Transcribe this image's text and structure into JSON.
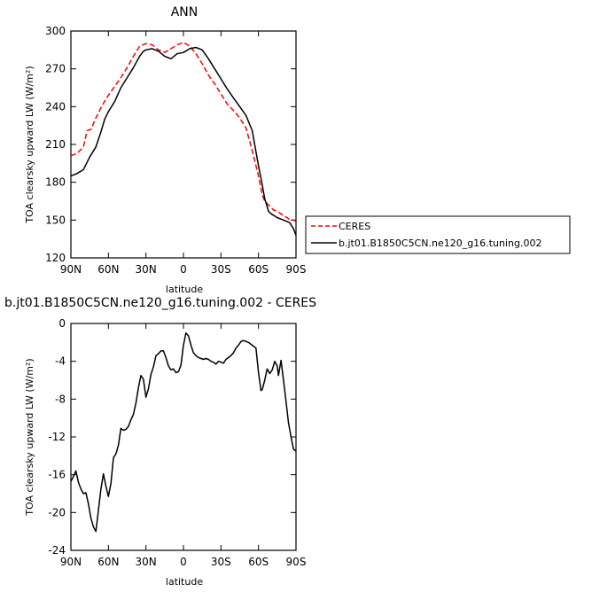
{
  "chart_data": [
    {
      "type": "line",
      "title": "ANN",
      "xlabel": "latitude",
      "ylabel": "TOA clearsky upward LW (W/m²)",
      "xlim": [
        90,
        -90
      ],
      "ylim": [
        120,
        300
      ],
      "xticks": [
        {
          "value": 90,
          "label": "90N"
        },
        {
          "value": 60,
          "label": "60N"
        },
        {
          "value": 30,
          "label": "30N"
        },
        {
          "value": 0,
          "label": "0"
        },
        {
          "value": -30,
          "label": "30S"
        },
        {
          "value": -60,
          "label": "60S"
        },
        {
          "value": -90,
          "label": "90S"
        }
      ],
      "yticks": [
        120,
        150,
        180,
        210,
        240,
        270,
        300
      ],
      "legend_position": "right-bottom, outside plot",
      "series": [
        {
          "name": "CERES",
          "color": "#ff0000",
          "dash": true,
          "x": [
            90,
            85,
            80,
            77,
            74,
            70,
            65,
            60,
            55,
            50,
            45,
            40,
            35,
            30,
            25,
            20,
            15,
            10,
            5,
            0,
            -5,
            -10,
            -15,
            -20,
            -25,
            -30,
            -35,
            -40,
            -45,
            -50,
            -55,
            -60,
            -63,
            -65,
            -68,
            -70,
            -72,
            -75,
            -78,
            -80,
            -83,
            -85,
            -88,
            -90
          ],
          "y": [
            201,
            203,
            208,
            221,
            222,
            231,
            241,
            249,
            256,
            263,
            271,
            280,
            288,
            290,
            289,
            285,
            283,
            286,
            289,
            291,
            288,
            282,
            274,
            265,
            258,
            250,
            242,
            237,
            231,
            223,
            205,
            185,
            170,
            165,
            162,
            160,
            158,
            157,
            155,
            153,
            152,
            150,
            150,
            149
          ]
        },
        {
          "name": "b.jt01.B1850C5CN.ne120_g16.tuning.002",
          "color": "#000000",
          "dash": false,
          "x": [
            90,
            85,
            80,
            75,
            70,
            66,
            63,
            60,
            55,
            50,
            45,
            40,
            35,
            32,
            30,
            25,
            20,
            15,
            10,
            5,
            0,
            -5,
            -10,
            -15,
            -20,
            -25,
            -30,
            -35,
            -40,
            -45,
            -50,
            -55,
            -60,
            -63,
            -65,
            -68,
            -70,
            -75,
            -80,
            -85,
            -88,
            -90
          ],
          "y": [
            185,
            187,
            190,
            200,
            208,
            220,
            230,
            236,
            244,
            255,
            263,
            271,
            280,
            284,
            285,
            286,
            284,
            280,
            278,
            282,
            283,
            286,
            287,
            285,
            278,
            270,
            262,
            254,
            247,
            240,
            233,
            221,
            193,
            178,
            167,
            157,
            155,
            152,
            150,
            148,
            143,
            138
          ]
        }
      ]
    },
    {
      "type": "line",
      "title": "b.jt01.B1850C5CN.ne120_g16.tuning.002 - CERES",
      "xlabel": "latitude",
      "ylabel": "TOA clearsky upward LW (W/m²)",
      "xlim": [
        90,
        -90
      ],
      "ylim": [
        -24,
        0
      ],
      "xticks": [
        {
          "value": 90,
          "label": "90N"
        },
        {
          "value": 60,
          "label": "60N"
        },
        {
          "value": 30,
          "label": "30N"
        },
        {
          "value": 0,
          "label": "0"
        },
        {
          "value": -30,
          "label": "30S"
        },
        {
          "value": -60,
          "label": "60S"
        },
        {
          "value": -90,
          "label": "90S"
        }
      ],
      "yticks": [
        -24,
        -20,
        -16,
        -12,
        -8,
        -4,
        0
      ],
      "series": [
        {
          "color": "#000000",
          "x": [
            90,
            88,
            86,
            84,
            82,
            80,
            78,
            76,
            74,
            72,
            70,
            68,
            66,
            64,
            62,
            60,
            58,
            56,
            54,
            52,
            50,
            48,
            46,
            44,
            42,
            40,
            38,
            36,
            34,
            32,
            30,
            28,
            26,
            24,
            22,
            20,
            18,
            16,
            14,
            12,
            10,
            8,
            6,
            4,
            2,
            0,
            -2,
            -4,
            -6,
            -8,
            -10,
            -12,
            -14,
            -16,
            -18,
            -20,
            -22,
            -24,
            -26,
            -28,
            -30,
            -32,
            -34,
            -36,
            -38,
            -40,
            -42,
            -44,
            -46,
            -48,
            -50,
            -52,
            -54,
            -56,
            -58,
            -60,
            -62,
            -63,
            -65,
            -67,
            -69,
            -71,
            -73,
            -75,
            -76,
            -78,
            -80,
            -82,
            -84,
            -86,
            -88,
            -89,
            -90
          ],
          "y": [
            -16.7,
            -16.2,
            -15.6,
            -16.8,
            -17.5,
            -18.0,
            -17.9,
            -19.1,
            -20.6,
            -21.5,
            -22.0,
            -19.8,
            -17.5,
            -15.9,
            -17.2,
            -18.3,
            -16.9,
            -14.2,
            -13.8,
            -12.9,
            -11.1,
            -11.3,
            -11.2,
            -10.9,
            -10.2,
            -9.6,
            -8.4,
            -6.8,
            -5.5,
            -5.9,
            -7.8,
            -6.9,
            -5.4,
            -4.6,
            -3.4,
            -3.2,
            -2.9,
            -2.9,
            -3.6,
            -4.5,
            -4.9,
            -4.8,
            -5.2,
            -5.1,
            -4.4,
            -2.3,
            -1.0,
            -1.3,
            -2.3,
            -3.1,
            -3.4,
            -3.6,
            -3.7,
            -3.8,
            -3.7,
            -3.8,
            -4.0,
            -4.1,
            -4.3,
            -4.0,
            -4.1,
            -4.2,
            -3.8,
            -3.6,
            -3.4,
            -3.1,
            -2.6,
            -2.3,
            -1.9,
            -1.8,
            -1.9,
            -2.0,
            -2.2,
            -2.4,
            -2.6,
            -5.2,
            -7.1,
            -7.0,
            -6.0,
            -4.8,
            -5.3,
            -4.9,
            -4.0,
            -4.5,
            -5.5,
            -3.9,
            -6.0,
            -8.2,
            -10.5,
            -12.0,
            -13.3,
            -13.4,
            -13.5
          ]
        }
      ]
    }
  ]
}
